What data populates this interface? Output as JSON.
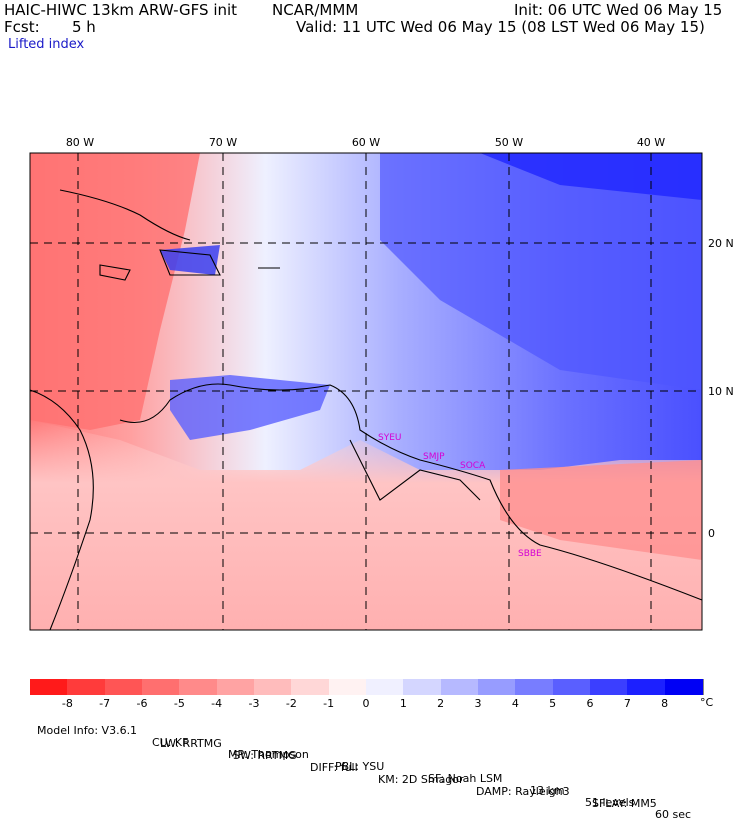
{
  "header": {
    "model_title": "HAIC-HIWC 13km ARW-GFS init",
    "org": "NCAR/MMM",
    "init": "Init: 06 UTC Wed 06 May 15",
    "fcst_label": "Fcst:",
    "fcst_value": "5 h",
    "valid": "Valid: 11 UTC Wed 06 May 15 (08 LST Wed 06 May 15)",
    "field": "Lifted index"
  },
  "map": {
    "lon_labels": [
      "80 W",
      "70 W",
      "60 W",
      "50 W",
      "40 W"
    ],
    "lat_labels": [
      "20 N",
      "10 N",
      "0"
    ],
    "station_labels": [
      "SYEU",
      "SMJP",
      "SOCA",
      "SBBE"
    ]
  },
  "colorbar": {
    "unit": "°C",
    "labels": [
      "-8",
      "-7",
      "-6",
      "-5",
      "-4",
      "-3",
      "-2",
      "-1",
      "0",
      "1",
      "2",
      "3",
      "4",
      "5",
      "6",
      "7",
      "8"
    ],
    "colors": [
      "#ff1a1a",
      "#ff3b3b",
      "#ff5555",
      "#ff6f6f",
      "#ff8a8a",
      "#ffa3a3",
      "#ffbcbc",
      "#ffd7d7",
      "#fff2f2",
      "#f0f0ff",
      "#d4d6ff",
      "#b6b9ff",
      "#979cff",
      "#787dff",
      "#5a5fff",
      "#3b3fff",
      "#1c20ff",
      "#0000f5"
    ]
  },
  "footer": {
    "line1": [
      "Model Info: V3.6.1",
      "CU: KF",
      "MP: Thompson",
      "PBL: YSU",
      "SF: Noah LSM",
      "13 km",
      "51 levels",
      "60 sec"
    ],
    "line2": [
      "LW: RRTMG",
      "SW: RRTMG",
      "DIFF: full",
      "KM: 2D Smagor",
      "DAMP: Rayleigh3",
      "SFLAY: MM5"
    ]
  }
}
